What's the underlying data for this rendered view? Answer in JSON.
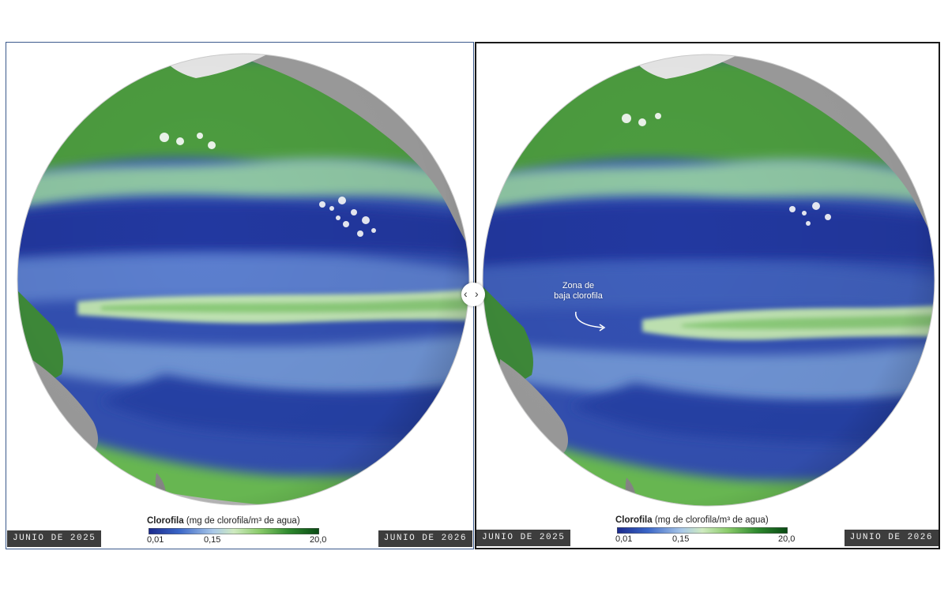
{
  "left_panel": {
    "date_label": "JUNIO DE 2025"
  },
  "right_panel": {
    "date_label": "JUNIO DE 2026",
    "annotation": {
      "line1": "Zona de",
      "line2": "baja clorofila"
    }
  },
  "legend": {
    "title_bold": "Clorofila",
    "title_rest": " (mg de clorofila/m³ de agua)",
    "ticks": [
      "0,01",
      "0,15",
      "20,0"
    ],
    "colors": [
      "#1b2a8c",
      "#3a66c8",
      "#a9c8e8",
      "#cfeac0",
      "#8acb6a",
      "#2e8a2e",
      "#0a4a14"
    ]
  },
  "slider": {
    "left_icon": "chevron-left-icon",
    "right_icon": "chevron-right-icon"
  },
  "colors": {
    "ocean_low": "#2a46a8",
    "ocean_mid": "#6f95d6",
    "chlorophyll_high": "#3f9a3a",
    "land": "#9a9a9a",
    "ice": "#ececec",
    "frame_left": "#3b5a8c",
    "frame_right": "#1a1a1a",
    "tag_bg": "#3d3d3d"
  }
}
